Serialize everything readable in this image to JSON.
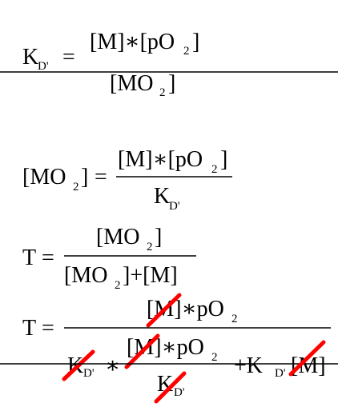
{
  "equations": {
    "eq1": {
      "lhs": "K",
      "lhs_sub": "D'",
      "op": "=",
      "num": "[M]∗[pO",
      "num_sub": "2",
      "num_end": "]",
      "den": "[MO",
      "den_sub": "2",
      "den_end": "]"
    },
    "eq2": {
      "lhs": "[MO",
      "lhs_sub": "2",
      "lhs_end": "]",
      "op": "=",
      "num": "[M]∗[pO",
      "num_sub": "2",
      "num_end": "]",
      "den": "K",
      "den_sub": "D'"
    },
    "eq3": {
      "lhs": "T",
      "op": "=",
      "num": "[MO",
      "num_sub": "2",
      "num_end": "]",
      "den": "[MO",
      "den_sub": "2",
      "den_mid": "]+[M]"
    },
    "eq4": {
      "lhs": "T",
      "op": "=",
      "num": "[M]∗pO",
      "num_sub": "2",
      "den_k": "K",
      "den_k_sub": "D'",
      "den_times": "∗",
      "inner_num": "[M]∗pO",
      "inner_num_sub": "2",
      "inner_den": "K",
      "inner_den_sub": "D'",
      "plus_k": "+K",
      "plus_k_sub": "D'",
      "plus_m": "[M]"
    }
  },
  "colors": {
    "strike": "#ff0000"
  }
}
